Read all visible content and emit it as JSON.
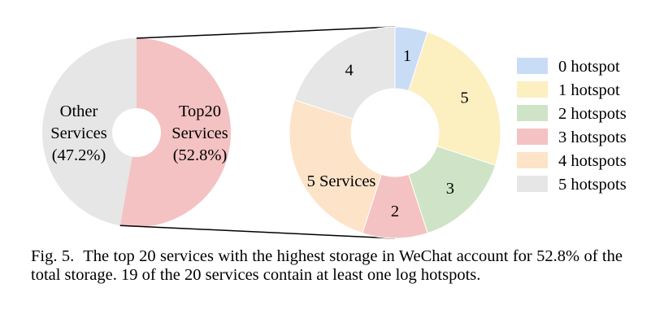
{
  "chart_data": [
    {
      "type": "pie",
      "donut": true,
      "title": "",
      "slices": [
        {
          "label": "Top20 Services",
          "text_lines": [
            "Top20",
            "Services",
            "(52.8%)"
          ],
          "value": 52.8,
          "color": "#f4c2c2"
        },
        {
          "label": "Other Services",
          "text_lines": [
            "Other",
            "Services",
            "(47.2%)"
          ],
          "value": 47.2,
          "color": "#e6e6e6"
        }
      ]
    },
    {
      "type": "pie",
      "donut": true,
      "title": "",
      "unit": "services",
      "slices": [
        {
          "series": "0 hotspot",
          "value": 1,
          "label": "1",
          "color": "#c9dcf6"
        },
        {
          "series": "1 hotspot",
          "value": 5,
          "label": "5",
          "color": "#fcefc0"
        },
        {
          "series": "2 hotspots",
          "value": 3,
          "label": "3",
          "color": "#cfe4c7"
        },
        {
          "series": "3 hotspots",
          "value": 2,
          "label": "2",
          "color": "#f4c2c2"
        },
        {
          "series": "4 hotspots",
          "value": 5,
          "label": "5 Services",
          "color": "#fde3c8"
        },
        {
          "series": "5 hotspots",
          "value": 4,
          "label": "4",
          "color": "#e6e6e6"
        }
      ],
      "legend": {
        "placement": "right",
        "entries": [
          "0 hotspot",
          "1 hotspot",
          "2 hotspots",
          "3 hotspots",
          "4 hotspots",
          "5 hotspots"
        ]
      }
    }
  ],
  "caption": {
    "label": "Fig. 5.",
    "text": "The top 20 services with the highest storage in WeChat account for 52.8% of the total storage. 19 of the 20 services contain at least one log hotspots."
  }
}
